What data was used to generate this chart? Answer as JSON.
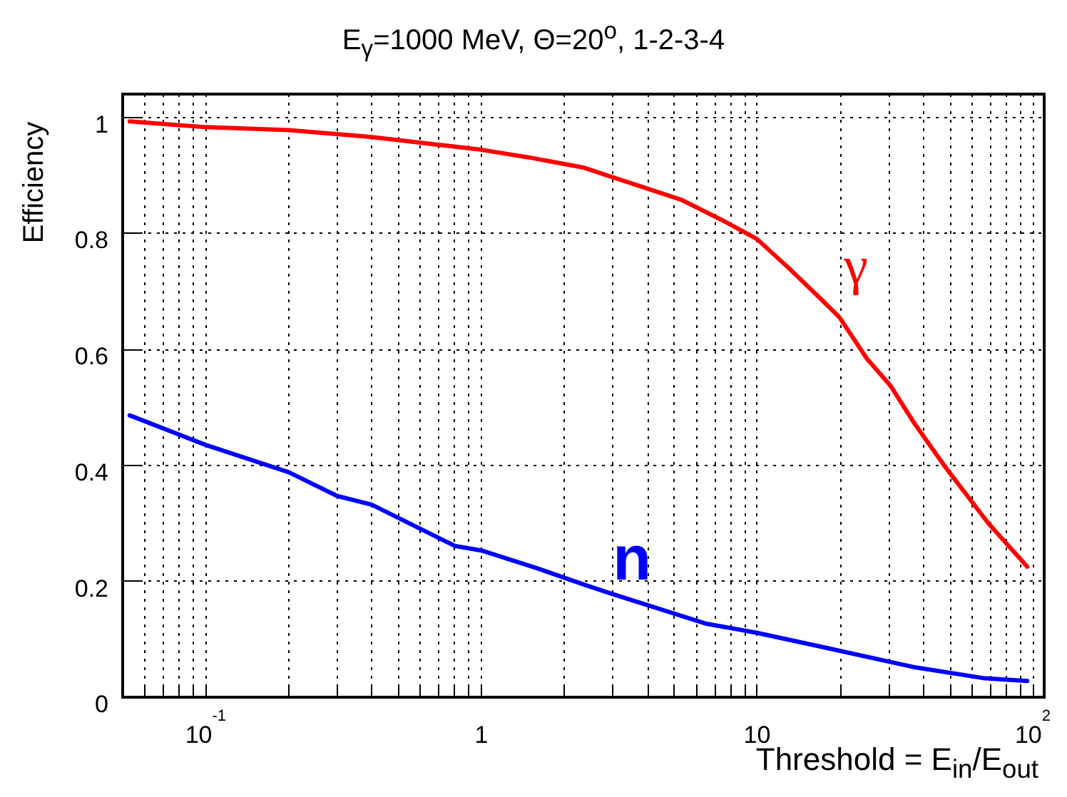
{
  "chart_data": {
    "type": "line",
    "title": "E$_{γ}$=1000 MeV, Θ=20$^{o}$, 1-2-3-4",
    "xlabel": "Threshold = E$_{in}$/E$_{out}$",
    "ylabel": "Efficiency",
    "series": [
      {
        "name": "γ",
        "color": "#ff0000",
        "x": [
          0.053,
          0.1,
          0.2,
          0.4,
          1,
          1.48,
          2.36,
          2.98,
          5.3,
          7.8,
          10,
          13.1,
          17.1,
          19.9,
          25,
          30.5,
          37,
          48.5,
          69,
          95.5
        ],
        "values": [
          0.993,
          0.983,
          0.978,
          0.966,
          0.944,
          0.931,
          0.913,
          0.897,
          0.858,
          0.818,
          0.79,
          0.739,
          0.686,
          0.655,
          0.584,
          0.537,
          0.474,
          0.395,
          0.3,
          0.225
        ]
      },
      {
        "name": "n",
        "color": "#0000ff",
        "x": [
          0.053,
          0.1,
          0.2,
          0.3,
          0.4,
          0.8,
          1,
          1.6,
          2.36,
          2.98,
          6.5,
          10,
          17.1,
          37,
          66,
          95.5
        ],
        "values": [
          0.486,
          0.435,
          0.388,
          0.347,
          0.332,
          0.261,
          0.253,
          0.222,
          0.194,
          0.178,
          0.127,
          0.111,
          0.087,
          0.052,
          0.033,
          0.028
        ]
      }
    ],
    "log": "x",
    "xlim": [
      0.05,
      110
    ],
    "ylim": [
      0,
      1.04
    ],
    "xticks": [
      {
        "value": 0.05,
        "label": null
      },
      {
        "value": 0.06,
        "label": null
      },
      {
        "value": 0.07,
        "label": null
      },
      {
        "value": 0.08,
        "label": null
      },
      {
        "value": 0.09,
        "label": null
      },
      {
        "value": 0.1,
        "label": "10$^{-1}$"
      },
      {
        "value": 0.2,
        "label": null
      },
      {
        "value": 0.3,
        "label": null
      },
      {
        "value": 0.4,
        "label": null
      },
      {
        "value": 0.5,
        "label": null
      },
      {
        "value": 0.6,
        "label": null
      },
      {
        "value": 0.7,
        "label": null
      },
      {
        "value": 0.8,
        "label": null
      },
      {
        "value": 0.9,
        "label": null
      },
      1,
      {
        "value": 2,
        "label": null
      },
      {
        "value": 3,
        "label": null
      },
      {
        "value": 4,
        "label": null
      },
      {
        "value": 5,
        "label": null
      },
      {
        "value": 6,
        "label": null
      },
      {
        "value": 7,
        "label": null
      },
      {
        "value": 8,
        "label": null
      },
      {
        "value": 9,
        "label": null
      },
      10,
      {
        "value": 20,
        "label": null
      },
      {
        "value": 30,
        "label": null
      },
      {
        "value": 40,
        "label": null
      },
      {
        "value": 50,
        "label": null
      },
      {
        "value": 60,
        "label": null
      },
      {
        "value": 70,
        "label": null
      },
      {
        "value": 80,
        "label": null
      },
      {
        "value": 90,
        "label": null
      },
      {
        "value": 100,
        "label": "10$^{2}$"
      }
    ],
    "yticks": [
      0,
      0.2,
      0.4,
      0.6,
      0.8,
      1
    ],
    "grid": true,
    "marker": "none",
    "line_style": "solid"
  }
}
